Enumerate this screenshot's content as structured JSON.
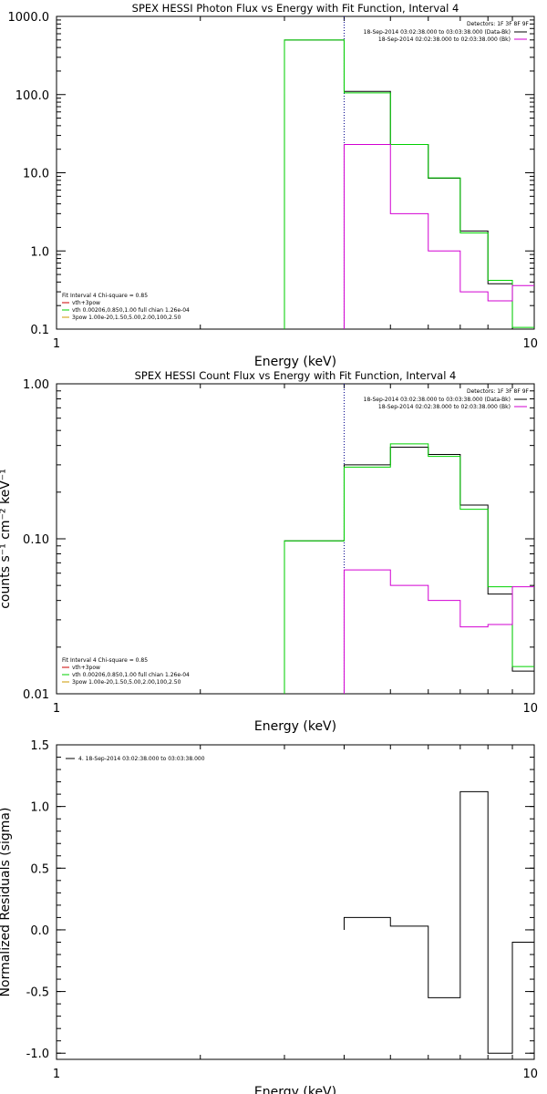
{
  "colors": {
    "black": "#000000",
    "green": "#00d200",
    "magenta": "#d200d2",
    "red": "#cc0000",
    "orange": "#cc9900",
    "navy": "#00008b"
  },
  "chart_data": [
    {
      "type": "line",
      "title": "SPEX HESSI Photon Flux vs Energy with Fit Function, Interval 4",
      "xlabel": "Energy (keV)",
      "ylabel": "",
      "x_scale": "log",
      "y_scale": "log",
      "xlim": [
        1,
        10
      ],
      "ylim": [
        0.1,
        1000
      ],
      "x_ticks": [
        {
          "v": 1,
          "label": "1"
        },
        {
          "v": 10,
          "label": "10"
        }
      ],
      "y_ticks": [
        {
          "v": 0.1,
          "label": "0.1"
        },
        {
          "v": 1,
          "label": "1.0"
        },
        {
          "v": 10,
          "label": "10.0"
        },
        {
          "v": 100,
          "label": "100.0"
        },
        {
          "v": 1000,
          "label": "1000.0"
        }
      ],
      "vline": 4.0,
      "detectors_text": "Detectors: 1F 3F 8F 9F",
      "interval_lines": [
        {
          "text": "18-Sep-2014 03:02:38.000 to 03:03:38.000 (Data-Bk)",
          "color": "black"
        },
        {
          "text": "18-Sep-2014 02:02:38.000 to 02:03:38.000 (Bk)",
          "color": "magenta"
        }
      ],
      "fit_legend": [
        {
          "text": "Fit Interval 4   Chi-square = 0.85",
          "color": null
        },
        {
          "text": "vth+3pow",
          "color": "red"
        },
        {
          "text": "vth 0.00206,0.850,1.00  full chian 1.26e-04",
          "color": "green"
        },
        {
          "text": "3pow 1.00e-20,1.50,5.00,2.00,100,2.50",
          "color": "orange"
        }
      ],
      "edges": [
        3.0,
        4.0,
        5.0,
        6.0,
        7.0,
        8.0,
        9.0,
        10.0
      ],
      "series": [
        {
          "name": "Data-Bk",
          "color": "black",
          "values": [
            500,
            110,
            23,
            8.5,
            1.8,
            0.38,
            0.095
          ]
        },
        {
          "name": "vth+3pow",
          "color": "green",
          "values": [
            500,
            105,
            23,
            8.6,
            1.7,
            0.42,
            0.105
          ]
        },
        {
          "name": "Bk",
          "color": "magenta",
          "values": [
            null,
            23,
            3.0,
            1.0,
            0.3,
            0.23,
            0.36
          ]
        }
      ]
    },
    {
      "type": "line",
      "title": "SPEX HESSI Count Flux vs Energy with Fit Function, Interval 4",
      "xlabel": "Energy (keV)",
      "ylabel": "counts s⁻¹ cm⁻² keV⁻¹",
      "x_scale": "log",
      "y_scale": "log",
      "xlim": [
        1,
        10
      ],
      "ylim": [
        0.01,
        1.0
      ],
      "x_ticks": [
        {
          "v": 1,
          "label": "1"
        },
        {
          "v": 10,
          "label": "10"
        }
      ],
      "y_ticks": [
        {
          "v": 0.01,
          "label": "0.01"
        },
        {
          "v": 0.1,
          "label": "0.10"
        },
        {
          "v": 1,
          "label": "1.00"
        }
      ],
      "vline": 4.0,
      "detectors_text": "Detectors: 1F 3F 8F 9F",
      "interval_lines": [
        {
          "text": "18-Sep-2014 03:02:38.000 to 03:03:38.000 (Data-Bk)",
          "color": "black"
        },
        {
          "text": "18-Sep-2014 02:02:38.000 to 02:03:38.000 (Bk)",
          "color": "magenta"
        }
      ],
      "fit_legend": [
        {
          "text": "Fit Interval 4   Chi-square = 0.85",
          "color": null
        },
        {
          "text": "vth+3pow",
          "color": "red"
        },
        {
          "text": "vth 0.00206,0.850,1.00  full chian 1.26e-04",
          "color": "green"
        },
        {
          "text": "3pow 1.00e-20,1.50,5.00,2.00,100,2.50",
          "color": "orange"
        }
      ],
      "edges": [
        3.0,
        4.0,
        5.0,
        6.0,
        7.0,
        8.0,
        9.0,
        10.0
      ],
      "series": [
        {
          "name": "Data-Bk",
          "color": "black",
          "values": [
            0.097,
            0.3,
            0.39,
            0.35,
            0.165,
            0.044,
            0.014
          ]
        },
        {
          "name": "vth+3pow",
          "color": "green",
          "values": [
            0.097,
            0.29,
            0.41,
            0.34,
            0.155,
            0.049,
            0.015
          ]
        },
        {
          "name": "Bk",
          "color": "magenta",
          "values": [
            null,
            0.063,
            0.05,
            0.04,
            0.027,
            0.028,
            0.049
          ]
        }
      ]
    },
    {
      "type": "line",
      "title": "",
      "xlabel": "Energy (keV)",
      "ylabel": "Normalized Residuals (sigma)",
      "x_scale": "log",
      "y_scale": "linear",
      "xlim": [
        1,
        10
      ],
      "ylim": [
        -1.05,
        1.5
      ],
      "x_ticks": [
        {
          "v": 1,
          "label": "1"
        },
        {
          "v": 10,
          "label": "10"
        }
      ],
      "y_ticks": [
        {
          "v": -1.0,
          "label": "-1.0"
        },
        {
          "v": -0.5,
          "label": "-0.5"
        },
        {
          "v": 0.0,
          "label": "0.0"
        },
        {
          "v": 0.5,
          "label": "0.5"
        },
        {
          "v": 1.0,
          "label": "1.0"
        },
        {
          "v": 1.5,
          "label": "1.5"
        }
      ],
      "vline": null,
      "interval_lines": [],
      "fit_legend": [],
      "residual_legend": "4. 18-Sep-2014 03:02:38.000 to 03:03:38.000",
      "edges": [
        4.0,
        5.0,
        6.0,
        7.0,
        8.0,
        9.0,
        10.0
      ],
      "series": [
        {
          "name": "Residuals",
          "color": "black",
          "values": [
            0.1,
            0.03,
            -0.55,
            1.12,
            -1.0,
            -0.1
          ]
        }
      ]
    }
  ]
}
